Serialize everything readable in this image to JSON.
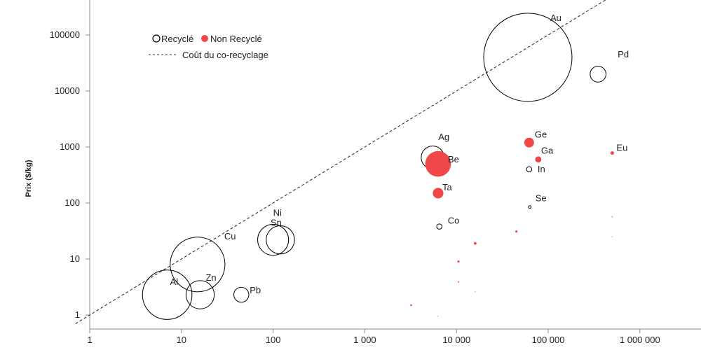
{
  "chart_data": {
    "type": "scatter",
    "title": "",
    "xlabel": "",
    "ylabel": "Prix ($/kg)",
    "x_scale": "log",
    "y_scale": "log",
    "xlim": [
      1,
      1000000
    ],
    "ylim": [
      1,
      300000
    ],
    "x_ticks": [
      "1",
      "10",
      "100",
      "1 000",
      "10 000",
      "100 000",
      "1 000 000"
    ],
    "y_ticks": [
      "1",
      "10",
      "100",
      "1000",
      "10000",
      "100000"
    ],
    "legend": {
      "placement": "top-left",
      "recycled_label": "Recyclé",
      "non_recycled_label": "Non Recyclé",
      "line_label": "Coût du co-recyclage"
    },
    "colors": {
      "recycled": "#000000",
      "non_recycled": "#f04848",
      "line": "#333333"
    },
    "cost_line": [
      {
        "x": 0.7,
        "y": 0.7
      },
      {
        "x": 1000000,
        "y": 1000000
      }
    ],
    "series": [
      {
        "name": "Recyclé",
        "style": "hollow",
        "points": [
          {
            "label": "Au",
            "x": 60000,
            "y": 40000,
            "size": 100
          },
          {
            "label": "Pd",
            "x": 350000,
            "y": 20000,
            "size": 18
          },
          {
            "label": "Ag",
            "x": 5500,
            "y": 650,
            "size": 26
          },
          {
            "label": "In",
            "x": 62000,
            "y": 400,
            "size": 6
          },
          {
            "label": "Se",
            "x": 63000,
            "y": 85,
            "size": 3
          },
          {
            "label": "Co",
            "x": 6500,
            "y": 38,
            "size": 6
          },
          {
            "label": "Ni",
            "x": 100,
            "y": 22,
            "size": 35
          },
          {
            "label": "Sn",
            "x": 120,
            "y": 22,
            "size": 32
          },
          {
            "label": "Cu",
            "x": 15,
            "y": 8,
            "size": 62
          },
          {
            "label": "Al",
            "x": 7,
            "y": 2.3,
            "size": 56
          },
          {
            "label": "Zn",
            "x": 16,
            "y": 2.3,
            "size": 32
          },
          {
            "label": "Pb",
            "x": 45,
            "y": 2.3,
            "size": 17
          }
        ]
      },
      {
        "name": "Non Recyclé",
        "style": "filled",
        "points": [
          {
            "label": "Be",
            "x": 6300,
            "y": 500,
            "size": 29
          },
          {
            "label": "Ge",
            "x": 62000,
            "y": 1200,
            "size": 11
          },
          {
            "label": "Ga",
            "x": 78000,
            "y": 600,
            "size": 7
          },
          {
            "label": "Eu",
            "x": 500000,
            "y": 780,
            "size": 4
          },
          {
            "label": "Ta",
            "x": 6300,
            "y": 150,
            "size": 12
          },
          {
            "label": "",
            "x": 16000,
            "y": 19,
            "size": 3
          },
          {
            "label": "",
            "x": 45000,
            "y": 31,
            "size": 2.5
          },
          {
            "label": "",
            "x": 10500,
            "y": 9,
            "size": 2.5
          },
          {
            "label": "",
            "x": 10500,
            "y": 3.9,
            "size": 1.5
          },
          {
            "label": "",
            "x": 3200,
            "y": 1.5,
            "size": 2
          },
          {
            "label": "",
            "x": 500000,
            "y": 57,
            "size": 1.2
          },
          {
            "label": "",
            "x": 500000,
            "y": 25,
            "size": 0.6
          },
          {
            "label": "",
            "x": 16000,
            "y": 2.6,
            "size": 0.6
          },
          {
            "label": "",
            "x": 6300,
            "y": 0.95,
            "size": 0.6
          }
        ]
      }
    ]
  }
}
